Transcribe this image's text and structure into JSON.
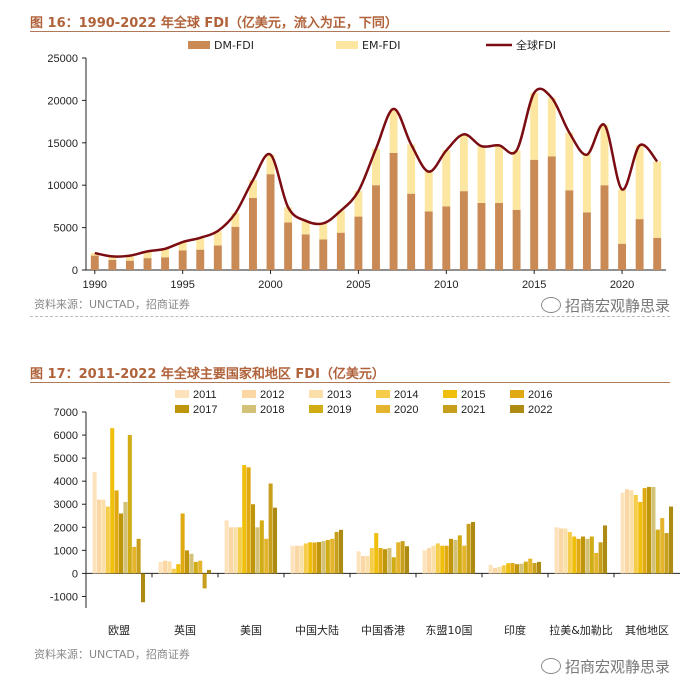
{
  "chart_data": [
    {
      "type": "bar",
      "title": "图 16：1990-2022 年全球 FDI（亿美元，流入为正，下同）",
      "source": "资料来源：UNCTAD，招商证券",
      "legend": [
        "DM-FDI",
        "EM-FDI",
        "全球FDI"
      ],
      "x": [
        1990,
        1991,
        1992,
        1993,
        1994,
        1995,
        1996,
        1997,
        1998,
        1999,
        2000,
        2001,
        2002,
        2003,
        2004,
        2005,
        2006,
        2007,
        2008,
        2009,
        2010,
        2011,
        2012,
        2013,
        2014,
        2015,
        2016,
        2017,
        2018,
        2019,
        2020,
        2021,
        2022
      ],
      "x_tick_labels": [
        "1990",
        "1995",
        "2000",
        "2005",
        "2010",
        "2015",
        "2020"
      ],
      "y_ticks": [
        0,
        5000,
        10000,
        15000,
        20000,
        25000
      ],
      "ylim": [
        0,
        25000
      ],
      "series": [
        {
          "name": "DM-FDI",
          "stack": true,
          "values": [
            1700,
            1200,
            1100,
            1400,
            1500,
            2300,
            2400,
            2900,
            5100,
            8500,
            11300,
            5600,
            4200,
            3600,
            4400,
            6300,
            10000,
            13800,
            9000,
            6900,
            7500,
            9300,
            7900,
            7900,
            7100,
            13000,
            13400,
            9400,
            6800,
            10000,
            3100,
            6000,
            3800
          ]
        },
        {
          "name": "EM-FDI",
          "stack": true,
          "values": [
            300,
            400,
            600,
            800,
            1000,
            1000,
            1400,
            1700,
            1600,
            2100,
            2300,
            1800,
            1600,
            1900,
            2600,
            3000,
            4300,
            5200,
            5800,
            4700,
            6600,
            6700,
            6700,
            6800,
            7000,
            7900,
            6900,
            6800,
            6800,
            7100,
            6400,
            8700,
            9000
          ]
        },
        {
          "name": "全球FDI",
          "type": "line",
          "values": [
            2000,
            1600,
            1700,
            2200,
            2500,
            3300,
            3800,
            4600,
            6700,
            10600,
            13600,
            7400,
            5800,
            5500,
            7000,
            9300,
            14300,
            19000,
            14800,
            11600,
            14100,
            16000,
            14600,
            14700,
            14100,
            20900,
            20300,
            16200,
            13600,
            17100,
            9500,
            14700,
            12800
          ]
        }
      ]
    },
    {
      "type": "bar",
      "title": "图 17：2011-2022 年全球主要国家和地区 FDI（亿美元）",
      "source": "资料来源：UNCTAD，招商证券",
      "categories": [
        "欧盟",
        "英国",
        "美国",
        "中国大陆",
        "中国香港",
        "东盟10国",
        "印度",
        "拉美&加勒比",
        "其他地区"
      ],
      "y_ticks": [
        -1000,
        0,
        1000,
        2000,
        3000,
        4000,
        5000,
        6000,
        7000
      ],
      "ylim": [
        -1500,
        7000
      ],
      "series": [
        {
          "name": "2011",
          "values": [
            4400,
            500,
            2300,
            1200,
            960,
            1000,
            370,
            2000,
            3500
          ]
        },
        {
          "name": "2012",
          "values": [
            3200,
            550,
            2000,
            1200,
            750,
            1100,
            240,
            1950,
            3650
          ]
        },
        {
          "name": "2013",
          "values": [
            3200,
            520,
            2000,
            1200,
            760,
            1200,
            280,
            1950,
            3600
          ]
        },
        {
          "name": "2014",
          "values": [
            2900,
            200,
            2000,
            1300,
            1100,
            1300,
            350,
            1800,
            3400
          ]
        },
        {
          "name": "2015",
          "values": [
            6300,
            400,
            4700,
            1350,
            1750,
            1200,
            440,
            1600,
            3100
          ]
        },
        {
          "name": "2016",
          "values": [
            3600,
            2600,
            4600,
            1340,
            1100,
            1200,
            450,
            1500,
            3700
          ]
        },
        {
          "name": "2017",
          "values": [
            2600,
            1000,
            3000,
            1360,
            1050,
            1500,
            400,
            1600,
            3750
          ]
        },
        {
          "name": "2018",
          "values": [
            3100,
            850,
            2000,
            1400,
            1100,
            1450,
            420,
            1500,
            3750
          ]
        },
        {
          "name": "2019",
          "values": [
            6000,
            500,
            2300,
            1450,
            700,
            1650,
            510,
            1600,
            1900
          ]
        },
        {
          "name": "2020",
          "values": [
            1150,
            550,
            1500,
            1500,
            1350,
            1200,
            640,
            890,
            2400
          ]
        },
        {
          "name": "2021",
          "values": [
            1500,
            -650,
            3900,
            1800,
            1400,
            2150,
            450,
            1350,
            1750
          ]
        },
        {
          "name": "2022",
          "values": [
            -1250,
            150,
            2850,
            1890,
            1180,
            2230,
            500,
            2080,
            2900
          ]
        }
      ]
    }
  ],
  "watermark": "招商宏观静思录",
  "colors": {
    "dm": "#c98a56",
    "em": "#fce6a0",
    "line": "#7a0c12",
    "years": [
      "#fde3bb",
      "#fbd7a6",
      "#fae0a8",
      "#f6cd4a",
      "#f0bf0c",
      "#e0a912",
      "#bf950b",
      "#d2c176",
      "#d2ac14",
      "#e4b52c",
      "#c89f1c",
      "#ad8a12"
    ]
  }
}
